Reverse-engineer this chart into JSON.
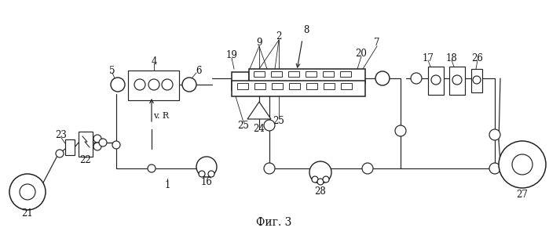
{
  "title": "Фиг. 3",
  "bg_color": "#ffffff",
  "line_color": "#222222",
  "title_fontsize": 10,
  "label_fontsize": 8.5
}
